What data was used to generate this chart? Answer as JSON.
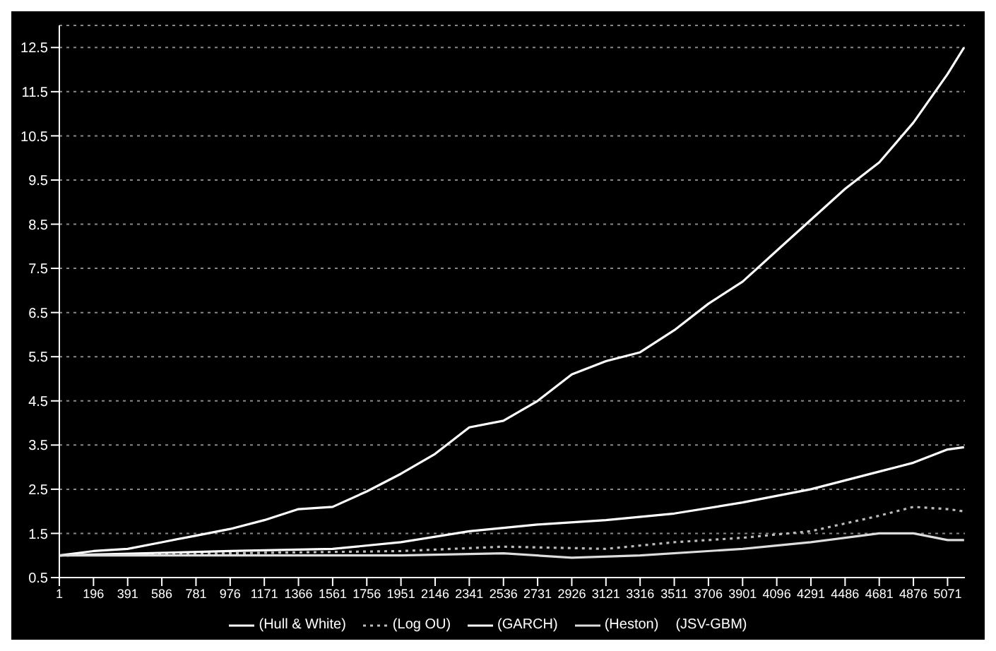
{
  "chart_data": {
    "type": "line",
    "xlim": [
      1,
      5170
    ],
    "xticks": [
      1,
      196,
      391,
      586,
      781,
      976,
      1171,
      1366,
      1561,
      1756,
      1951,
      2146,
      2341,
      2536,
      2731,
      2926,
      3121,
      3316,
      3511,
      3706,
      3901,
      4096,
      4291,
      4486,
      4681,
      4876,
      5071
    ],
    "ylim": [
      0.5,
      13
    ],
    "yticks": [
      0.5,
      1.5,
      2.5,
      3.5,
      4.5,
      5.5,
      6.5,
      7.5,
      8.5,
      9.5,
      10.5,
      11.5,
      12.5
    ],
    "grid": "y",
    "legend": "bottom",
    "series": [
      {
        "name": "(Hull & White)",
        "color": "#ffffff",
        "x": [
          1,
          196,
          391,
          586,
          781,
          976,
          1171,
          1366,
          1561,
          1756,
          1951,
          2146,
          2341,
          2536,
          2731,
          2926,
          3121,
          3316,
          3511,
          3706,
          3901,
          4096,
          4291,
          4486,
          4681,
          4876,
          5071,
          5165
        ],
        "values": [
          1.0,
          1.1,
          1.15,
          1.3,
          1.45,
          1.6,
          1.8,
          2.05,
          2.1,
          2.45,
          2.85,
          3.3,
          3.9,
          4.05,
          4.5,
          5.1,
          5.4,
          5.6,
          6.1,
          6.7,
          7.2,
          7.9,
          8.6,
          9.3,
          9.9,
          10.8,
          11.9,
          12.5
        ]
      },
      {
        "name": "(Log OU)",
        "color": "#bbbbbb",
        "line_style": "dotted",
        "x": [
          1,
          976,
          1951,
          2536,
          3121,
          3511,
          3901,
          4291,
          4681,
          4876,
          5071,
          5165
        ],
        "values": [
          1.0,
          1.05,
          1.1,
          1.2,
          1.15,
          1.3,
          1.4,
          1.55,
          1.9,
          2.1,
          2.05,
          2.0
        ]
      },
      {
        "name": "(GARCH)",
        "color": "#ffffff",
        "x": [
          1,
          976,
          1561,
          1951,
          2341,
          2731,
          3121,
          3511,
          3901,
          4291,
          4681,
          4876,
          5071,
          5165
        ],
        "values": [
          1.0,
          1.1,
          1.15,
          1.3,
          1.55,
          1.7,
          1.8,
          1.95,
          2.2,
          2.5,
          2.9,
          3.1,
          3.4,
          3.45
        ]
      },
      {
        "name": "(Heston)",
        "color": "#dddddd",
        "x": [
          1,
          976,
          1951,
          2536,
          2926,
          3316,
          3901,
          4291,
          4681,
          4876,
          5071,
          5165
        ],
        "values": [
          1.0,
          1.0,
          1.0,
          1.05,
          0.95,
          1.0,
          1.15,
          1.3,
          1.5,
          1.5,
          1.35,
          1.35
        ]
      }
    ],
    "annotations": [
      "(JSV-GBM)"
    ]
  }
}
